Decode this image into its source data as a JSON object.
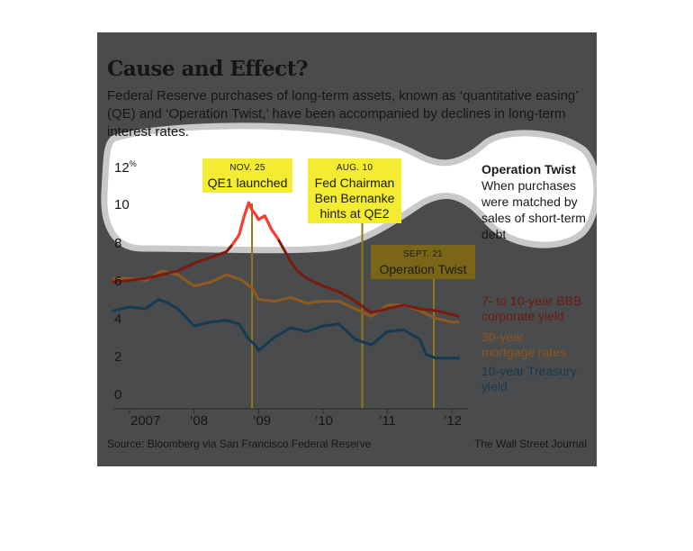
{
  "title": "Cause and Effect?",
  "subtitle": "Federal Reserve purchases of long-term assets, known as ‘quantitative easing’ (QE) and ‘Operation Twist,’ have been accompanied by declines in long-term interest rates.",
  "callout": {
    "heading": "Operation Twist",
    "text": "When purchases were matched by sales of short-term debt"
  },
  "annotations": {
    "qe1": {
      "date": "NOV. 25",
      "label": "QE1 launched"
    },
    "qe2": {
      "date": "AUG. 10",
      "label": "Fed Chairman Ben Bernanke hints at QE2"
    },
    "twist": {
      "date": "SEPT. 21",
      "label": "Operation Twist"
    }
  },
  "y_unit": "%",
  "source": "Source: Bloomberg via San Francisco Federal Reserve",
  "credit": "The Wall Street Journal",
  "colors": {
    "background": "#4a4b4c",
    "bbb": "#7a1a10",
    "mortgage": "#8f5a22",
    "treasury": "#163a52",
    "marker_line": "#8f7a18",
    "yellow_box": "#f4ec32",
    "olive_box": "#7a6616",
    "highlight_red": "#ff3a2e"
  },
  "chart_data": {
    "type": "line",
    "title": "Cause and Effect?",
    "xlabel": "",
    "ylabel": "",
    "ylim": [
      0,
      12
    ],
    "xlim": [
      2006.75,
      2012.25
    ],
    "yticks": [
      "12",
      "10",
      "8",
      "6",
      "4",
      "2",
      "0"
    ],
    "xticks": [
      {
        "label": "2007",
        "x": 2007.0
      },
      {
        "label": "’08",
        "x": 2008.0
      },
      {
        "label": "’09",
        "x": 2009.0
      },
      {
        "label": "’10",
        "x": 2010.0
      },
      {
        "label": "’11",
        "x": 2011.0
      },
      {
        "label": "’12",
        "x": 2012.0
      }
    ],
    "grid": false,
    "legend_position": "right",
    "events": [
      {
        "name": "NOV. 25",
        "x": 2008.9
      },
      {
        "name": "AUG. 10",
        "x": 2010.61
      },
      {
        "name": "SEPT. 21",
        "x": 2011.72
      }
    ],
    "series": [
      {
        "name": "7- to 10-year BBB corporate yield",
        "x": [
          2006.75,
          2007.0,
          2007.25,
          2007.5,
          2007.75,
          2008.0,
          2008.25,
          2008.5,
          2008.6,
          2008.7,
          2008.78,
          2008.85,
          2008.9,
          2008.95,
          2009.0,
          2009.1,
          2009.2,
          2009.3,
          2009.4,
          2009.5,
          2009.6,
          2009.75,
          2010.0,
          2010.25,
          2010.5,
          2010.75,
          2011.0,
          2011.25,
          2011.5,
          2011.75,
          2012.0,
          2012.1
        ],
        "y": [
          6.0,
          6.1,
          6.2,
          6.4,
          6.6,
          7.0,
          7.3,
          7.6,
          8.0,
          8.5,
          9.5,
          10.2,
          9.8,
          9.6,
          9.3,
          9.5,
          8.8,
          8.3,
          7.7,
          7.1,
          6.6,
          6.2,
          5.8,
          5.5,
          5.0,
          4.4,
          4.6,
          4.8,
          4.6,
          4.5,
          4.3,
          4.2
        ]
      },
      {
        "name": "30-year mortgage rates",
        "x": [
          2006.75,
          2007.0,
          2007.25,
          2007.5,
          2007.75,
          2008.0,
          2008.25,
          2008.5,
          2008.75,
          2008.9,
          2009.0,
          2009.25,
          2009.5,
          2009.75,
          2010.0,
          2010.25,
          2010.5,
          2010.75,
          2011.0,
          2011.25,
          2011.5,
          2011.75,
          2012.0,
          2012.1
        ],
        "y": [
          6.2,
          6.2,
          6.1,
          6.6,
          6.4,
          5.8,
          6.0,
          6.4,
          6.1,
          5.7,
          5.1,
          5.0,
          5.2,
          4.9,
          5.0,
          5.0,
          4.6,
          4.2,
          4.8,
          4.8,
          4.5,
          4.1,
          3.9,
          3.9
        ]
      },
      {
        "name": "10-year Treasury yield",
        "x": [
          2006.75,
          2007.0,
          2007.25,
          2007.45,
          2007.6,
          2007.75,
          2008.0,
          2008.25,
          2008.5,
          2008.7,
          2008.85,
          2008.95,
          2009.0,
          2009.25,
          2009.5,
          2009.75,
          2010.0,
          2010.25,
          2010.5,
          2010.75,
          2011.0,
          2011.25,
          2011.5,
          2011.6,
          2011.75,
          2012.0,
          2012.1
        ],
        "y": [
          4.5,
          4.7,
          4.6,
          5.1,
          4.9,
          4.6,
          3.7,
          3.9,
          4.0,
          3.8,
          3.0,
          2.7,
          2.4,
          3.1,
          3.6,
          3.4,
          3.7,
          3.8,
          3.0,
          2.7,
          3.4,
          3.5,
          3.0,
          2.2,
          2.0,
          2.0,
          2.0
        ]
      }
    ]
  }
}
